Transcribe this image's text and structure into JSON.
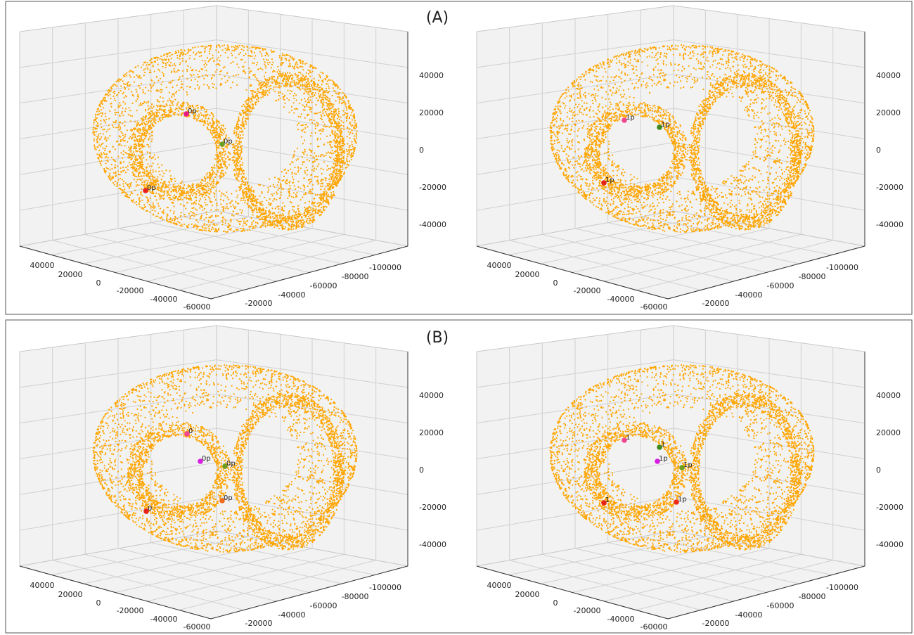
{
  "chart_data": [
    {
      "type": "scatter3d",
      "title": "(A)",
      "xticks": [
        40000,
        20000,
        0,
        -20000,
        -40000,
        -60000
      ],
      "yticks": [
        -20000,
        -40000,
        -60000,
        -80000,
        -100000
      ],
      "zticks": [
        40000,
        20000,
        0,
        -20000,
        -40000
      ],
      "annotations": [
        {
          "text": "0p",
          "color": "#e8198b"
        },
        {
          "text": "0p",
          "color": "#6b9e1f"
        },
        {
          "text": "0p",
          "color": "#e8201a"
        }
      ]
    },
    {
      "type": "scatter3d",
      "xticks": [
        40000,
        20000,
        0,
        -20000,
        -40000,
        -60000
      ],
      "yticks": [
        -20000,
        -40000,
        -60000,
        -80000,
        -100000
      ],
      "zticks": [
        40000,
        20000,
        0,
        -20000,
        -40000
      ],
      "annotations": [
        {
          "text": "1p",
          "color": "#f0478f"
        },
        {
          "text": "1p",
          "color": "#3f8a1c"
        },
        {
          "text": "1p",
          "color": "#e8201a"
        }
      ]
    },
    {
      "type": "scatter3d",
      "title": "(B)",
      "xticks": [
        40000,
        20000,
        0,
        -20000,
        -40000,
        -60000
      ],
      "yticks": [
        -20000,
        -40000,
        -60000,
        -80000,
        -100000
      ],
      "zticks": [
        40000,
        20000,
        0,
        -20000,
        -40000
      ],
      "annotations": [
        {
          "text": "0",
          "color": "#f0478f"
        },
        {
          "text": "0p",
          "color": "#d61ee0"
        },
        {
          "text": "0p",
          "color": "#6b9e1f"
        },
        {
          "text": "0",
          "color": "#e8201a"
        },
        {
          "text": "0p",
          "color": "#f06a1a"
        }
      ]
    },
    {
      "type": "scatter3d",
      "xticks": [
        40000,
        20000,
        0,
        -20000,
        -40000,
        -60000
      ],
      "yticks": [
        -20000,
        -40000,
        -60000,
        -80000,
        -100000
      ],
      "zticks": [
        40000,
        20000,
        0,
        -20000,
        -40000
      ],
      "annotations": [
        {
          "text": "1",
          "color": "#f0478f"
        },
        {
          "text": "1p",
          "color": "#d61ee0"
        },
        {
          "text": "1",
          "color": "#3f8a1c"
        },
        {
          "text": "1p",
          "color": "#6b9e1f"
        },
        {
          "text": "1",
          "color": "#e8201a"
        },
        {
          "text": "1p",
          "color": "#f02a1a"
        }
      ]
    }
  ]
}
